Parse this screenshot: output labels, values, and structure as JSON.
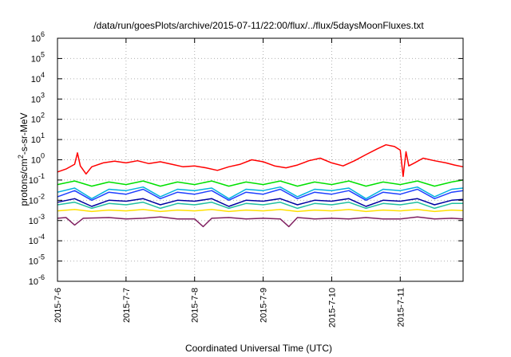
{
  "chart_data": {
    "type": "line",
    "title": "/data/run/goesPlots/archive/2015-07-11/22:00/flux/../flux/5daysMoonFluxes.txt",
    "xlabel": "Coordinated Universal Time (UTC)",
    "ylabel": {
      "base": "protons/cm",
      "sup": "2",
      "rest": "-s-sr-MeV"
    },
    "y_scale": "log",
    "ylim": [
      1e-06,
      1000000.0
    ],
    "y_ticks": [
      {
        "value": 1e-06,
        "base": "10",
        "exp": "-6"
      },
      {
        "value": 1e-05,
        "base": "10",
        "exp": "-5"
      },
      {
        "value": 0.0001,
        "base": "10",
        "exp": "-4"
      },
      {
        "value": 0.001,
        "base": "10",
        "exp": "-3"
      },
      {
        "value": 0.01,
        "base": "10",
        "exp": "-2"
      },
      {
        "value": 0.1,
        "base": "10",
        "exp": "-1"
      },
      {
        "value": 1,
        "base": "10",
        "exp": "0"
      },
      {
        "value": 10,
        "base": "10",
        "exp": "1"
      },
      {
        "value": 100,
        "base": "10",
        "exp": "2"
      },
      {
        "value": 1000,
        "base": "10",
        "exp": "3"
      },
      {
        "value": 10000,
        "base": "10",
        "exp": "4"
      },
      {
        "value": 100000,
        "base": "10",
        "exp": "5"
      },
      {
        "value": 1000000,
        "base": "10",
        "exp": "6"
      }
    ],
    "xlim": [
      "2015-07-06",
      "2015-07-11T22:00"
    ],
    "x_ticks": [
      {
        "value": "2015-07-06",
        "label": "2015-7-6"
      },
      {
        "value": "2015-07-07",
        "label": "2015-7-7"
      },
      {
        "value": "2015-07-08",
        "label": "2015-7-8"
      },
      {
        "value": "2015-07-09",
        "label": "2015-7-9"
      },
      {
        "value": "2015-07-10",
        "label": "2015-7-10"
      },
      {
        "value": "2015-07-11",
        "label": "2015-7-11"
      }
    ],
    "grid": true,
    "series": [
      {
        "color": "#ff0000",
        "points": [
          [
            "2015-07-06T00:00",
            0.25
          ],
          [
            "2015-07-06T03:00",
            0.35
          ],
          [
            "2015-07-06T06:00",
            0.6
          ],
          [
            "2015-07-06T07:00",
            2.2
          ],
          [
            "2015-07-06T08:00",
            0.5
          ],
          [
            "2015-07-06T10:00",
            0.2
          ],
          [
            "2015-07-06T12:00",
            0.45
          ],
          [
            "2015-07-06T16:00",
            0.7
          ],
          [
            "2015-07-06T20:00",
            0.85
          ],
          [
            "2015-07-07T00:00",
            0.7
          ],
          [
            "2015-07-07T04:00",
            0.9
          ],
          [
            "2015-07-07T08:00",
            0.65
          ],
          [
            "2015-07-07T12:00",
            0.8
          ],
          [
            "2015-07-07T16:00",
            0.6
          ],
          [
            "2015-07-07T20:00",
            0.45
          ],
          [
            "2015-07-08T00:00",
            0.5
          ],
          [
            "2015-07-08T04:00",
            0.4
          ],
          [
            "2015-07-08T08:00",
            0.3
          ],
          [
            "2015-07-08T12:00",
            0.45
          ],
          [
            "2015-07-08T16:00",
            0.6
          ],
          [
            "2015-07-08T20:00",
            1.0
          ],
          [
            "2015-07-09T00:00",
            0.8
          ],
          [
            "2015-07-09T04:00",
            0.5
          ],
          [
            "2015-07-09T08:00",
            0.4
          ],
          [
            "2015-07-09T12:00",
            0.55
          ],
          [
            "2015-07-09T16:00",
            0.9
          ],
          [
            "2015-07-09T20:00",
            1.2
          ],
          [
            "2015-07-10T00:00",
            0.7
          ],
          [
            "2015-07-10T04:00",
            0.5
          ],
          [
            "2015-07-10T08:00",
            0.9
          ],
          [
            "2015-07-10T12:00",
            1.8
          ],
          [
            "2015-07-10T16:00",
            3.5
          ],
          [
            "2015-07-10T19:00",
            5.5
          ],
          [
            "2015-07-10T22:00",
            4.5
          ],
          [
            "2015-07-11T00:00",
            3.0
          ],
          [
            "2015-07-11T01:00",
            0.15
          ],
          [
            "2015-07-11T02:00",
            2.5
          ],
          [
            "2015-07-11T03:00",
            0.5
          ],
          [
            "2015-07-11T05:00",
            0.7
          ],
          [
            "2015-07-11T08:00",
            1.2
          ],
          [
            "2015-07-11T12:00",
            0.9
          ],
          [
            "2015-07-11T16:00",
            0.7
          ],
          [
            "2015-07-11T19:00",
            0.55
          ],
          [
            "2015-07-11T22:00",
            0.45
          ]
        ]
      },
      {
        "color": "#00e000",
        "points": [
          [
            "2015-07-06T00:00",
            0.06
          ],
          [
            "2015-07-06T06:00",
            0.09
          ],
          [
            "2015-07-06T12:00",
            0.05
          ],
          [
            "2015-07-06T18:00",
            0.08
          ],
          [
            "2015-07-07T00:00",
            0.06
          ],
          [
            "2015-07-07T06:00",
            0.09
          ],
          [
            "2015-07-07T12:00",
            0.05
          ],
          [
            "2015-07-07T18:00",
            0.08
          ],
          [
            "2015-07-08T00:00",
            0.06
          ],
          [
            "2015-07-08T06:00",
            0.09
          ],
          [
            "2015-07-08T12:00",
            0.05
          ],
          [
            "2015-07-08T18:00",
            0.08
          ],
          [
            "2015-07-09T00:00",
            0.06
          ],
          [
            "2015-07-09T06:00",
            0.09
          ],
          [
            "2015-07-09T12:00",
            0.05
          ],
          [
            "2015-07-09T18:00",
            0.08
          ],
          [
            "2015-07-10T00:00",
            0.06
          ],
          [
            "2015-07-10T06:00",
            0.09
          ],
          [
            "2015-07-10T12:00",
            0.05
          ],
          [
            "2015-07-10T18:00",
            0.08
          ],
          [
            "2015-07-11T00:00",
            0.06
          ],
          [
            "2015-07-11T06:00",
            0.09
          ],
          [
            "2015-07-11T12:00",
            0.05
          ],
          [
            "2015-07-11T18:00",
            0.08
          ],
          [
            "2015-07-11T22:00",
            0.1
          ]
        ]
      },
      {
        "color": "#00b0e0",
        "points": [
          [
            "2015-07-06T00:00",
            0.025
          ],
          [
            "2015-07-06T06:00",
            0.04
          ],
          [
            "2015-07-06T12:00",
            0.012
          ],
          [
            "2015-07-06T18:00",
            0.035
          ],
          [
            "2015-07-07T00:00",
            0.03
          ],
          [
            "2015-07-07T06:00",
            0.045
          ],
          [
            "2015-07-07T12:00",
            0.015
          ],
          [
            "2015-07-07T18:00",
            0.035
          ],
          [
            "2015-07-08T00:00",
            0.03
          ],
          [
            "2015-07-08T06:00",
            0.04
          ],
          [
            "2015-07-08T12:00",
            0.012
          ],
          [
            "2015-07-08T18:00",
            0.035
          ],
          [
            "2015-07-09T00:00",
            0.03
          ],
          [
            "2015-07-09T06:00",
            0.045
          ],
          [
            "2015-07-09T12:00",
            0.015
          ],
          [
            "2015-07-09T18:00",
            0.035
          ],
          [
            "2015-07-10T00:00",
            0.03
          ],
          [
            "2015-07-10T06:00",
            0.04
          ],
          [
            "2015-07-10T12:00",
            0.012
          ],
          [
            "2015-07-10T18:00",
            0.035
          ],
          [
            "2015-07-11T00:00",
            0.03
          ],
          [
            "2015-07-11T06:00",
            0.045
          ],
          [
            "2015-07-11T12:00",
            0.015
          ],
          [
            "2015-07-11T18:00",
            0.035
          ],
          [
            "2015-07-11T22:00",
            0.04
          ]
        ]
      },
      {
        "color": "#2040ff",
        "points": [
          [
            "2015-07-06T00:00",
            0.015
          ],
          [
            "2015-07-06T06:00",
            0.03
          ],
          [
            "2015-07-06T12:00",
            0.01
          ],
          [
            "2015-07-06T18:00",
            0.025
          ],
          [
            "2015-07-07T00:00",
            0.02
          ],
          [
            "2015-07-07T06:00",
            0.035
          ],
          [
            "2015-07-07T12:00",
            0.012
          ],
          [
            "2015-07-07T18:00",
            0.025
          ],
          [
            "2015-07-08T00:00",
            0.02
          ],
          [
            "2015-07-08T06:00",
            0.03
          ],
          [
            "2015-07-08T12:00",
            0.01
          ],
          [
            "2015-07-08T18:00",
            0.025
          ],
          [
            "2015-07-09T00:00",
            0.02
          ],
          [
            "2015-07-09T06:00",
            0.035
          ],
          [
            "2015-07-09T12:00",
            0.012
          ],
          [
            "2015-07-09T18:00",
            0.025
          ],
          [
            "2015-07-10T00:00",
            0.02
          ],
          [
            "2015-07-10T06:00",
            0.03
          ],
          [
            "2015-07-10T12:00",
            0.01
          ],
          [
            "2015-07-10T18:00",
            0.025
          ],
          [
            "2015-07-11T00:00",
            0.02
          ],
          [
            "2015-07-11T06:00",
            0.035
          ],
          [
            "2015-07-11T12:00",
            0.012
          ],
          [
            "2015-07-11T18:00",
            0.025
          ],
          [
            "2015-07-11T22:00",
            0.03
          ]
        ]
      },
      {
        "color": "#0000a0",
        "points": [
          [
            "2015-07-06T00:00",
            0.008
          ],
          [
            "2015-07-06T06:00",
            0.012
          ],
          [
            "2015-07-06T12:00",
            0.005
          ],
          [
            "2015-07-06T18:00",
            0.01
          ],
          [
            "2015-07-07T00:00",
            0.009
          ],
          [
            "2015-07-07T06:00",
            0.012
          ],
          [
            "2015-07-07T12:00",
            0.006
          ],
          [
            "2015-07-07T18:00",
            0.01
          ],
          [
            "2015-07-08T00:00",
            0.009
          ],
          [
            "2015-07-08T06:00",
            0.012
          ],
          [
            "2015-07-08T12:00",
            0.005
          ],
          [
            "2015-07-08T18:00",
            0.01
          ],
          [
            "2015-07-09T00:00",
            0.009
          ],
          [
            "2015-07-09T06:00",
            0.012
          ],
          [
            "2015-07-09T12:00",
            0.006
          ],
          [
            "2015-07-09T18:00",
            0.01
          ],
          [
            "2015-07-10T00:00",
            0.009
          ],
          [
            "2015-07-10T06:00",
            0.012
          ],
          [
            "2015-07-10T12:00",
            0.005
          ],
          [
            "2015-07-10T18:00",
            0.01
          ],
          [
            "2015-07-11T00:00",
            0.009
          ],
          [
            "2015-07-11T06:00",
            0.012
          ],
          [
            "2015-07-11T12:00",
            0.006
          ],
          [
            "2015-07-11T18:00",
            0.01
          ],
          [
            "2015-07-11T22:00",
            0.011
          ]
        ]
      },
      {
        "color": "#20c0a0",
        "points": [
          [
            "2015-07-06T00:00",
            0.006
          ],
          [
            "2015-07-06T06:00",
            0.008
          ],
          [
            "2015-07-06T12:00",
            0.004
          ],
          [
            "2015-07-06T18:00",
            0.007
          ],
          [
            "2015-07-07T00:00",
            0.006
          ],
          [
            "2015-07-07T06:00",
            0.008
          ],
          [
            "2015-07-07T12:00",
            0.004
          ],
          [
            "2015-07-07T18:00",
            0.007
          ],
          [
            "2015-07-08T00:00",
            0.006
          ],
          [
            "2015-07-08T06:00",
            0.008
          ],
          [
            "2015-07-08T12:00",
            0.004
          ],
          [
            "2015-07-08T18:00",
            0.007
          ],
          [
            "2015-07-09T00:00",
            0.006
          ],
          [
            "2015-07-09T06:00",
            0.008
          ],
          [
            "2015-07-09T12:00",
            0.004
          ],
          [
            "2015-07-09T18:00",
            0.007
          ],
          [
            "2015-07-10T00:00",
            0.006
          ],
          [
            "2015-07-10T06:00",
            0.008
          ],
          [
            "2015-07-10T12:00",
            0.004
          ],
          [
            "2015-07-10T18:00",
            0.007
          ],
          [
            "2015-07-11T00:00",
            0.006
          ],
          [
            "2015-07-11T06:00",
            0.008
          ],
          [
            "2015-07-11T12:00",
            0.004
          ],
          [
            "2015-07-11T18:00",
            0.007
          ],
          [
            "2015-07-11T22:00",
            0.007
          ]
        ]
      },
      {
        "color": "#ffe000",
        "points": [
          [
            "2015-07-06T00:00",
            0.003
          ],
          [
            "2015-07-06T06:00",
            0.0035
          ],
          [
            "2015-07-06T12:00",
            0.0028
          ],
          [
            "2015-07-06T18:00",
            0.0033
          ],
          [
            "2015-07-07T00:00",
            0.003
          ],
          [
            "2015-07-07T06:00",
            0.0035
          ],
          [
            "2015-07-07T12:00",
            0.0028
          ],
          [
            "2015-07-07T18:00",
            0.0033
          ],
          [
            "2015-07-08T00:00",
            0.003
          ],
          [
            "2015-07-08T06:00",
            0.0035
          ],
          [
            "2015-07-08T12:00",
            0.0028
          ],
          [
            "2015-07-08T18:00",
            0.0033
          ],
          [
            "2015-07-09T00:00",
            0.003
          ],
          [
            "2015-07-09T06:00",
            0.0035
          ],
          [
            "2015-07-09T12:00",
            0.0028
          ],
          [
            "2015-07-09T18:00",
            0.0033
          ],
          [
            "2015-07-10T00:00",
            0.003
          ],
          [
            "2015-07-10T06:00",
            0.0035
          ],
          [
            "2015-07-10T12:00",
            0.0028
          ],
          [
            "2015-07-10T18:00",
            0.0033
          ],
          [
            "2015-07-11T00:00",
            0.003
          ],
          [
            "2015-07-11T06:00",
            0.0035
          ],
          [
            "2015-07-11T12:00",
            0.0028
          ],
          [
            "2015-07-11T18:00",
            0.0033
          ],
          [
            "2015-07-11T22:00",
            0.0031
          ]
        ]
      },
      {
        "color": "#802060",
        "points": [
          [
            "2015-07-06T00:00",
            0.0013
          ],
          [
            "2015-07-06T03:00",
            0.0014
          ],
          [
            "2015-07-06T06:00",
            0.0006
          ],
          [
            "2015-07-06T09:00",
            0.0013
          ],
          [
            "2015-07-06T18:00",
            0.0014
          ],
          [
            "2015-07-07T00:00",
            0.0012
          ],
          [
            "2015-07-07T06:00",
            0.0013
          ],
          [
            "2015-07-07T12:00",
            0.0015
          ],
          [
            "2015-07-07T18:00",
            0.0012
          ],
          [
            "2015-07-08T00:00",
            0.0012
          ],
          [
            "2015-07-08T03:00",
            0.0005
          ],
          [
            "2015-07-08T06:00",
            0.0013
          ],
          [
            "2015-07-08T12:00",
            0.0014
          ],
          [
            "2015-07-08T18:00",
            0.0012
          ],
          [
            "2015-07-09T00:00",
            0.0013
          ],
          [
            "2015-07-09T06:00",
            0.0012
          ],
          [
            "2015-07-09T09:00",
            0.0005
          ],
          [
            "2015-07-09T12:00",
            0.0014
          ],
          [
            "2015-07-09T18:00",
            0.0012
          ],
          [
            "2015-07-10T00:00",
            0.0013
          ],
          [
            "2015-07-10T06:00",
            0.0012
          ],
          [
            "2015-07-10T12:00",
            0.0014
          ],
          [
            "2015-07-10T18:00",
            0.0012
          ],
          [
            "2015-07-11T00:00",
            0.0012
          ],
          [
            "2015-07-11T06:00",
            0.0015
          ],
          [
            "2015-07-11T12:00",
            0.0012
          ],
          [
            "2015-07-11T18:00",
            0.0013
          ],
          [
            "2015-07-11T22:00",
            0.0012
          ]
        ]
      }
    ]
  }
}
